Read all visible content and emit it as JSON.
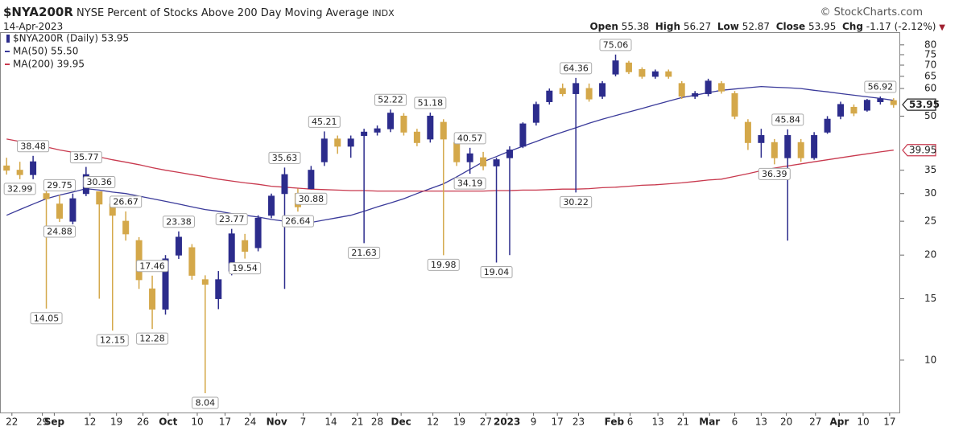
{
  "chart_data": {
    "type": "candlestick",
    "symbol": "$NYA200R",
    "title": "NYSE Percent of Stocks Above 200 Day Moving Average",
    "exchange": "INDX",
    "source": "© StockCharts.com",
    "date": "14-Apr-2023",
    "quote_labels": {
      "open": "Open",
      "high": "High",
      "low": "Low",
      "close": "Close",
      "change": "Chg"
    },
    "change": -1.17,
    "change_pct": {
      "value": -2.12,
      "label": "(-2.12%)"
    },
    "log_scale": true,
    "grid": false,
    "xlim": [
      -0.5,
      67.5
    ],
    "ylim": [
      7.08,
      87
    ],
    "yticks": [
      10,
      15,
      20,
      25,
      30,
      35,
      50,
      60,
      65,
      70,
      75,
      80
    ],
    "xticks": [
      {
        "value": 0.4,
        "label": "22"
      },
      {
        "value": 2.7,
        "label": "29"
      },
      {
        "value": 3.6,
        "label": "Sep"
      },
      {
        "value": 6.3,
        "label": "12"
      },
      {
        "value": 8.3,
        "label": "19"
      },
      {
        "value": 10.3,
        "label": "26"
      },
      {
        "value": 12.2,
        "label": "Oct"
      },
      {
        "value": 14.4,
        "label": "10"
      },
      {
        "value": 16.5,
        "label": "17"
      },
      {
        "value": 18.4,
        "label": "24"
      },
      {
        "value": 20.4,
        "label": "Nov"
      },
      {
        "value": 22.4,
        "label": "7"
      },
      {
        "value": 24.5,
        "label": "14"
      },
      {
        "value": 26.5,
        "label": "21"
      },
      {
        "value": 28.0,
        "label": "28"
      },
      {
        "value": 29.8,
        "label": "Dec"
      },
      {
        "value": 32.2,
        "label": "12"
      },
      {
        "value": 34.2,
        "label": "19"
      },
      {
        "value": 36.2,
        "label": "27"
      },
      {
        "value": 37.8,
        "label": "2023"
      },
      {
        "value": 39.8,
        "label": "9"
      },
      {
        "value": 41.6,
        "label": "17"
      },
      {
        "value": 43.2,
        "label": "23"
      },
      {
        "value": 45.9,
        "label": "Feb"
      },
      {
        "value": 47.1,
        "label": "6"
      },
      {
        "value": 49.2,
        "label": "13"
      },
      {
        "value": 51.1,
        "label": "21"
      },
      {
        "value": 53.1,
        "label": "Mar"
      },
      {
        "value": 55.0,
        "label": "6"
      },
      {
        "value": 57.0,
        "label": "13"
      },
      {
        "value": 58.9,
        "label": "20"
      },
      {
        "value": 61.1,
        "label": "27"
      },
      {
        "value": 62.9,
        "label": "Apr"
      },
      {
        "value": 64.7,
        "label": "10"
      },
      {
        "value": 66.7,
        "label": "17"
      }
    ],
    "candles": {
      "name": "$NYA200R (Daily) 53.95",
      "up_color": "#2c2c8c",
      "down_color": "#d4a84a",
      "open": [
        36,
        35,
        34,
        30,
        28,
        25,
        30,
        30.36,
        28,
        25,
        22,
        16,
        14,
        20,
        21,
        17,
        15,
        18,
        22,
        21,
        26,
        30,
        30,
        31,
        37,
        43,
        41,
        44,
        45,
        46,
        50,
        45,
        43,
        48,
        42,
        37,
        38,
        36,
        38,
        41,
        48,
        55,
        60,
        58,
        60,
        57,
        66,
        71,
        68,
        65,
        67,
        62,
        57,
        58,
        62,
        58,
        48,
        42,
        42,
        38,
        42,
        38,
        45,
        50,
        53,
        52,
        55,
        55.38
      ],
      "high": [
        38,
        37,
        38.48,
        31,
        29.75,
        30,
        35.77,
        30.36,
        28.5,
        26.67,
        22.5,
        17.46,
        20,
        23.38,
        21.5,
        17.5,
        18,
        23.77,
        23,
        26,
        30,
        35.63,
        31,
        36,
        45.21,
        44,
        44,
        46,
        47,
        52.22,
        51,
        46,
        51.18,
        49,
        43,
        40.57,
        39.5,
        38,
        41,
        48,
        55,
        60,
        62,
        64.36,
        62,
        63,
        75.06,
        72,
        69,
        68,
        68,
        63,
        59,
        64,
        63,
        59,
        49,
        46,
        43,
        45.84,
        43,
        45,
        50,
        55,
        54,
        56,
        56.92,
        56.27
      ],
      "low": [
        34,
        32.99,
        33,
        14.05,
        24.88,
        24.5,
        29.5,
        15,
        12.15,
        22,
        16,
        12.28,
        13.5,
        19.5,
        17,
        8.04,
        14,
        17.5,
        19.54,
        20.5,
        25.5,
        16,
        26.64,
        30.88,
        36,
        39,
        38,
        21.63,
        44,
        45,
        44,
        41,
        42,
        19.98,
        36,
        34.19,
        35,
        19.04,
        20,
        40.5,
        47,
        54,
        57,
        30.22,
        55,
        56,
        65,
        66,
        64,
        64,
        64,
        56,
        56,
        57,
        58,
        49,
        40,
        38,
        36.39,
        22,
        37,
        37.5,
        44.5,
        49,
        50,
        51.5,
        54,
        52.87
      ],
      "close": [
        35,
        34,
        37,
        29,
        25.5,
        29,
        34,
        28,
        26,
        23,
        17,
        14,
        19.5,
        22.5,
        17.5,
        16.5,
        17,
        23,
        20.5,
        25.5,
        29.5,
        34,
        27.5,
        35,
        43,
        41,
        43,
        45,
        46,
        51,
        45,
        42,
        50,
        43,
        37,
        39,
        36,
        37.5,
        40,
        47.5,
        54,
        59,
        58,
        62,
        56,
        62,
        72,
        67,
        65,
        67,
        65,
        57,
        58,
        63,
        59,
        50,
        42,
        44,
        38,
        44,
        38,
        44,
        49,
        54,
        51,
        55.5,
        56,
        53.95
      ]
    },
    "series": [
      {
        "name": "MA(50) 55.50",
        "color": "#3a3a9a",
        "values": [
          26,
          27,
          28,
          29,
          29.7,
          30.3,
          31,
          30.7,
          30.3,
          30,
          29.5,
          29,
          28.5,
          28,
          27.5,
          27,
          26.7,
          26.3,
          26,
          25.7,
          25.3,
          25,
          24.9,
          24.8,
          25.2,
          25.6,
          26,
          26.7,
          27.5,
          28.2,
          29,
          30,
          31,
          32,
          33.5,
          35.2,
          37,
          38.3,
          39.7,
          41,
          42.3,
          43.7,
          45,
          46.3,
          47.7,
          49,
          50.2,
          51.4,
          52.6,
          53.9,
          55.2,
          56.5,
          57.4,
          58.4,
          59.3,
          59.8,
          60.3,
          60.8,
          60.5,
          60.3,
          60,
          59.3,
          58.7,
          58,
          57.4,
          56.8,
          56.2,
          55.5
        ]
      },
      {
        "name": "MA(200) 39.95",
        "color": "#c8394e",
        "values": [
          43,
          42.3,
          41.6,
          40.8,
          40,
          39.4,
          38.8,
          38.2,
          37.5,
          36.9,
          36.3,
          35.6,
          35,
          34.5,
          34,
          33.5,
          33,
          32.6,
          32.2,
          31.9,
          31.5,
          31.3,
          31.1,
          30.9,
          30.8,
          30.7,
          30.6,
          30.6,
          30.5,
          30.5,
          30.5,
          30.5,
          30.5,
          30.5,
          30.5,
          30.5,
          30.5,
          30.6,
          30.6,
          30.7,
          30.7,
          30.8,
          30.9,
          30.9,
          31,
          31.2,
          31.3,
          31.5,
          31.7,
          31.8,
          32,
          32.2,
          32.5,
          32.8,
          33,
          33.6,
          34.2,
          34.9,
          35.5,
          36,
          36.5,
          37,
          37.5,
          38,
          38.5,
          39,
          39.5,
          39.95
        ]
      }
    ],
    "annotations": [
      {
        "x": 2,
        "value": 38.48
      },
      {
        "x": 1,
        "value": 32.99
      },
      {
        "x": 4,
        "value": 29.75
      },
      {
        "x": 4,
        "value": 24.88
      },
      {
        "x": 3,
        "value": 14.05
      },
      {
        "x": 6,
        "value": 35.77
      },
      {
        "x": 7,
        "value": 30.36
      },
      {
        "x": 8,
        "value": 12.15
      },
      {
        "x": 9,
        "value": 26.67
      },
      {
        "x": 11,
        "value": 17.46
      },
      {
        "x": 11,
        "value": 12.28
      },
      {
        "x": 13,
        "value": 23.38
      },
      {
        "x": 15,
        "value": 8.04
      },
      {
        "x": 17,
        "value": 23.77
      },
      {
        "x": 18,
        "value": 19.54
      },
      {
        "x": 21,
        "value": 35.63
      },
      {
        "x": 22,
        "value": 26.64
      },
      {
        "x": 23,
        "value": 30.88
      },
      {
        "x": 24,
        "value": 45.21
      },
      {
        "x": 27,
        "value": 21.63
      },
      {
        "x": 29,
        "value": 52.22
      },
      {
        "x": 32,
        "value": 51.18
      },
      {
        "x": 33,
        "value": 19.98
      },
      {
        "x": 35,
        "value": 40.57
      },
      {
        "x": 35,
        "value": 34.19
      },
      {
        "x": 37,
        "value": 19.04
      },
      {
        "x": 43,
        "value": 64.36
      },
      {
        "x": 43,
        "value": 30.22
      },
      {
        "x": 46,
        "value": 75.06
      },
      {
        "x": 58,
        "value": 36.39
      },
      {
        "x": 59,
        "value": 45.84
      },
      {
        "x": 66,
        "value": 56.92
      }
    ]
  }
}
